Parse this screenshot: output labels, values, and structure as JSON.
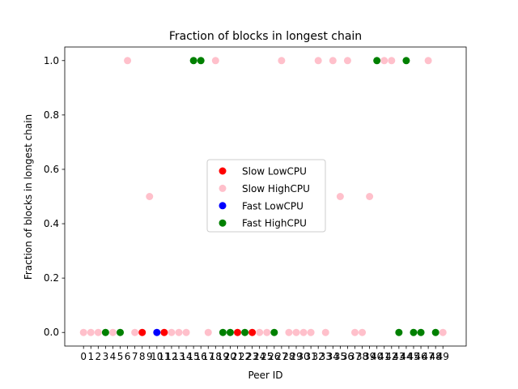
{
  "chart_data": {
    "type": "scatter",
    "title": "Fraction of blocks in longest chain",
    "xlabel": "Peer ID",
    "ylabel": "Fraction of blocks in longest chain",
    "x_categories": [
      "0",
      "1",
      "2",
      "3",
      "4",
      "5",
      "6",
      "7",
      "8",
      "9",
      "10",
      "11",
      "12",
      "13",
      "14",
      "15",
      "16",
      "17",
      "18",
      "19",
      "20",
      "21",
      "22",
      "23",
      "24",
      "25",
      "26",
      "27",
      "28",
      "29",
      "30",
      "31",
      "32",
      "33",
      "34",
      "35",
      "36",
      "37",
      "38",
      "39",
      "40",
      "41",
      "42",
      "43",
      "44",
      "45",
      "46",
      "47",
      "48",
      "49"
    ],
    "y_ticks": [
      "0.0",
      "0.2",
      "0.4",
      "0.6",
      "0.8",
      "1.0"
    ],
    "ylim": [
      -0.05,
      1.05
    ],
    "legend_position": "center",
    "series": [
      {
        "name": "Slow LowCPU",
        "color": "#ff0000",
        "points": [
          [
            8,
            0
          ],
          [
            11,
            0
          ],
          [
            21,
            0
          ],
          [
            23,
            0
          ]
        ]
      },
      {
        "name": "Slow HighCPU",
        "color": "#ffc0cb",
        "points": [
          [
            0,
            0
          ],
          [
            1,
            0
          ],
          [
            2,
            0
          ],
          [
            4,
            0
          ],
          [
            6,
            1
          ],
          [
            7,
            0
          ],
          [
            9,
            0.5
          ],
          [
            12,
            0
          ],
          [
            13,
            0
          ],
          [
            14,
            0
          ],
          [
            17,
            0
          ],
          [
            18,
            1
          ],
          [
            24,
            0
          ],
          [
            25,
            0
          ],
          [
            27,
            1
          ],
          [
            28,
            0
          ],
          [
            29,
            0
          ],
          [
            30,
            0
          ],
          [
            31,
            0
          ],
          [
            32,
            1
          ],
          [
            33,
            0
          ],
          [
            34,
            1
          ],
          [
            35,
            0.5
          ],
          [
            36,
            1
          ],
          [
            37,
            0
          ],
          [
            38,
            0
          ],
          [
            39,
            0.5
          ],
          [
            41,
            1
          ],
          [
            42,
            1
          ],
          [
            47,
            1
          ],
          [
            49,
            0
          ]
        ]
      },
      {
        "name": "Fast LowCPU",
        "color": "#0000ff",
        "points": [
          [
            10,
            0
          ]
        ]
      },
      {
        "name": "Fast HighCPU",
        "color": "#008000",
        "points": [
          [
            3,
            0
          ],
          [
            5,
            0
          ],
          [
            15,
            1
          ],
          [
            16,
            1
          ],
          [
            19,
            0
          ],
          [
            20,
            0
          ],
          [
            22,
            0
          ],
          [
            26,
            0
          ],
          [
            40,
            1
          ],
          [
            43,
            0
          ],
          [
            44,
            1
          ],
          [
            45,
            0
          ],
          [
            46,
            0
          ],
          [
            48,
            0
          ]
        ]
      }
    ]
  }
}
